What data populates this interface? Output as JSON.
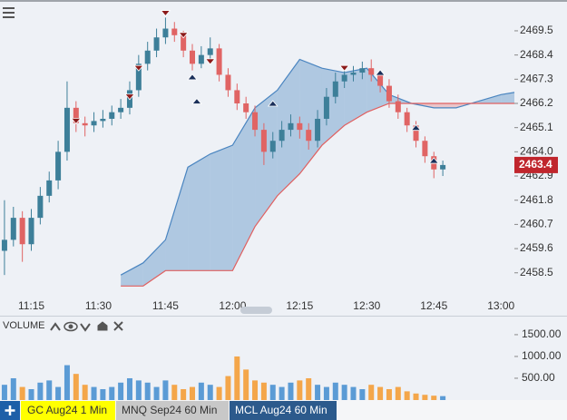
{
  "chart_data": {
    "type": "candlestick",
    "x": [
      "11:09",
      "11:11",
      "11:13",
      "11:15",
      "11:17",
      "11:19",
      "11:21",
      "11:23",
      "11:25",
      "11:27",
      "11:29",
      "11:31",
      "11:33",
      "11:35",
      "11:37",
      "11:39",
      "11:41",
      "11:43",
      "11:45",
      "11:47",
      "11:49",
      "11:51",
      "11:53",
      "11:55",
      "11:57",
      "11:59",
      "12:01",
      "12:03",
      "12:05",
      "12:07",
      "12:09",
      "12:11",
      "12:13",
      "12:15",
      "12:17",
      "12:19",
      "12:21",
      "12:23",
      "12:25",
      "12:27",
      "12:29",
      "12:31",
      "12:33",
      "12:35",
      "12:37",
      "12:39",
      "12:41",
      "12:43",
      "12:45",
      "12:47"
    ],
    "open": [
      2459.5,
      2460.0,
      2461.0,
      2459.8,
      2461.0,
      2462.0,
      2462.7,
      2464.0,
      2466.0,
      2465.3,
      2465.2,
      2465.4,
      2465.5,
      2465.8,
      2466.0,
      2466.8,
      2468.0,
      2468.6,
      2469.2,
      2469.6,
      2469.3,
      2468.6,
      2468.0,
      2468.4,
      2468.7,
      2467.5,
      2466.8,
      2466.2,
      2465.8,
      2465.0,
      2464.0,
      2464.5,
      2465.0,
      2465.3,
      2465.0,
      2464.5,
      2465.5,
      2466.5,
      2467.2,
      2467.5,
      2467.6,
      2467.8,
      2467.5,
      2467.0,
      2466.3,
      2465.8,
      2465.2,
      2464.5,
      2463.8,
      2463.2
    ],
    "high": [
      2461.8,
      2461.5,
      2461.3,
      2461.4,
      2462.4,
      2463.1,
      2464.5,
      2467.2,
      2466.3,
      2465.6,
      2465.8,
      2465.9,
      2466.1,
      2466.4,
      2467.2,
      2468.4,
      2469.0,
      2469.6,
      2470.1,
      2469.9,
      2469.5,
      2468.9,
      2468.8,
      2469.2,
      2468.9,
      2467.8,
      2467.1,
      2466.5,
      2466.1,
      2465.3,
      2464.9,
      2465.4,
      2465.7,
      2465.6,
      2465.3,
      2465.9,
      2466.9,
      2467.6,
      2467.9,
      2467.9,
      2468.1,
      2468.2,
      2467.7,
      2467.3,
      2466.6,
      2466.0,
      2465.4,
      2464.7,
      2464.0,
      2463.6
    ],
    "low": [
      2458.4,
      2459.7,
      2459.0,
      2459.5,
      2460.7,
      2461.7,
      2462.3,
      2463.6,
      2464.9,
      2464.7,
      2464.9,
      2465.1,
      2465.2,
      2465.5,
      2465.7,
      2466.5,
      2467.7,
      2468.3,
      2468.9,
      2469.0,
      2468.3,
      2467.7,
      2467.8,
      2468.1,
      2467.2,
      2466.5,
      2465.9,
      2465.5,
      2464.7,
      2463.4,
      2463.7,
      2464.2,
      2464.7,
      2464.6,
      2464.1,
      2464.2,
      2465.2,
      2466.2,
      2466.9,
      2467.2,
      2467.3,
      2467.2,
      2466.7,
      2466.0,
      2465.5,
      2464.9,
      2464.2,
      2463.5,
      2462.8,
      2462.9
    ],
    "close": [
      2460.0,
      2461.0,
      2459.8,
      2461.0,
      2462.0,
      2462.7,
      2464.0,
      2466.0,
      2465.3,
      2465.2,
      2465.4,
      2465.5,
      2465.8,
      2466.0,
      2466.8,
      2468.0,
      2468.6,
      2469.2,
      2469.6,
      2469.3,
      2468.6,
      2468.0,
      2468.4,
      2468.7,
      2467.5,
      2466.8,
      2466.2,
      2465.8,
      2465.0,
      2464.0,
      2464.5,
      2465.0,
      2465.3,
      2465.0,
      2464.5,
      2465.5,
      2466.5,
      2467.2,
      2467.5,
      2467.6,
      2467.8,
      2467.5,
      2467.0,
      2466.3,
      2465.8,
      2465.2,
      2464.5,
      2463.8,
      2463.2,
      2463.4
    ],
    "up_color": "#3d7f99",
    "down_color": "#e06464",
    "xlim": [
      "11:08",
      "13:03"
    ],
    "xticks": [
      "11:15",
      "11:30",
      "11:45",
      "12:00",
      "12:15",
      "12:30",
      "12:45",
      "13:00"
    ],
    "ylim": [
      2457.5,
      2470.9
    ],
    "yticks": [
      2469.5,
      2468.4,
      2467.3,
      2466.2,
      2465.1,
      {
        "value": 2464,
        "label": "2464.0"
      },
      2462.9,
      2461.8,
      2460.7,
      2459.6,
      2458.5
    ],
    "cloud": {
      "x": [
        "11:35",
        "11:40",
        "11:45",
        "11:50",
        "11:55",
        "12:00",
        "12:05",
        "12:10",
        "12:15",
        "12:20",
        "12:25",
        "12:30",
        "12:35",
        "12:40",
        "12:45",
        "12:50",
        "12:55",
        "13:00",
        "13:03"
      ],
      "span_a": [
        2458.4,
        2458.95,
        2460.0,
        2463.3,
        2463.9,
        2464.3,
        2466.0,
        2466.8,
        2468.2,
        2467.8,
        2467.6,
        2467.8,
        2466.6,
        2466.2,
        2466.0,
        2466.0,
        2466.3,
        2466.6,
        2466.7
      ],
      "span_b": [
        2457.9,
        2457.9,
        2458.6,
        2458.6,
        2458.6,
        2458.6,
        2460.6,
        2462.0,
        2463.0,
        2464.3,
        2465.2,
        2465.8,
        2466.2,
        2466.2,
        2466.2,
        2466.2,
        2466.2,
        2466.2,
        2466.2
      ],
      "color_a": "#4a85c0",
      "color_b": "#e06060"
    },
    "markers": [
      {
        "time": "11:25",
        "price": 2465.4,
        "dir": "down"
      },
      {
        "time": "11:37",
        "price": 2466.5,
        "dir": "down"
      },
      {
        "time": "11:39",
        "price": 2467.8,
        "dir": "down"
      },
      {
        "time": "11:45",
        "price": 2470.3,
        "dir": "down"
      },
      {
        "time": "11:49",
        "price": 2469.3,
        "dir": "down"
      },
      {
        "time": "11:51",
        "price": 2467.4,
        "dir": "up"
      },
      {
        "time": "11:52",
        "price": 2466.3,
        "dir": "up"
      },
      {
        "time": "11:55",
        "price": 2468.1,
        "dir": "down"
      },
      {
        "time": "12:09",
        "price": 2466.2,
        "dir": "up"
      },
      {
        "time": "12:25",
        "price": 2467.8,
        "dir": "down"
      },
      {
        "time": "12:33",
        "price": 2467.6,
        "dir": "up"
      },
      {
        "time": "12:41",
        "price": 2465.1,
        "dir": "up"
      },
      {
        "time": "12:45",
        "price": 2463.6,
        "dir": "up"
      }
    ],
    "volume": {
      "label": "VOLUME",
      "values": [
        350,
        500,
        300,
        250,
        400,
        450,
        300,
        800,
        600,
        350,
        300,
        250,
        300,
        400,
        500,
        450,
        400,
        300,
        450,
        350,
        250,
        300,
        400,
        350,
        300,
        550,
        1000,
        700,
        450,
        400,
        350,
        300,
        400,
        450,
        500,
        350,
        300,
        400,
        350,
        300,
        250,
        350,
        300,
        250,
        300,
        200,
        150,
        120,
        100,
        90
      ],
      "up_color": "#5b9bd5",
      "down_color": "#f4a64a",
      "ylim": [
        0,
        1790
      ],
      "yticks": [
        {
          "value": 1500,
          "label": "1500.00"
        },
        {
          "value": 1000,
          "label": "1000.00"
        },
        {
          "value": 500,
          "label": "500.00"
        }
      ]
    }
  },
  "tabs": [
    "GC Aug24 1 Min",
    "MNQ Sep24 60 Min",
    "MCL Aug24 60 Min"
  ]
}
